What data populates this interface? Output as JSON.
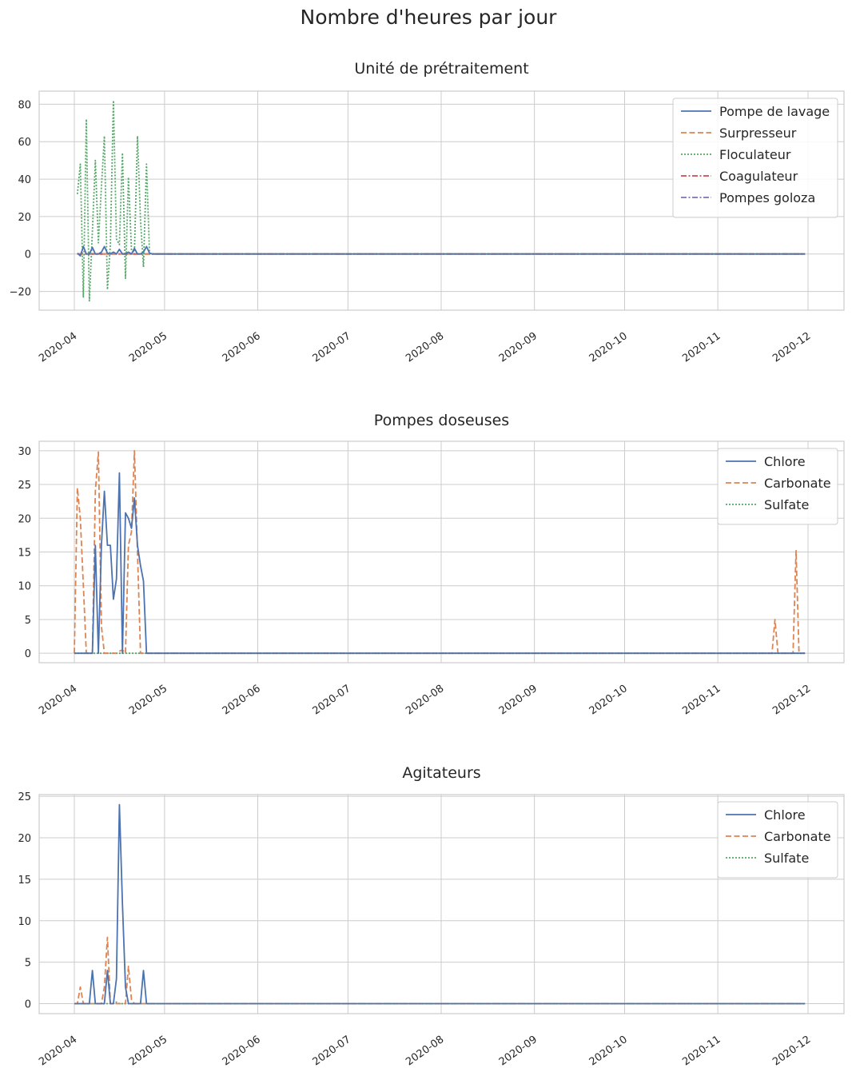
{
  "figure_title": "Nombre d'heures par jour",
  "chart_data": [
    {
      "type": "line",
      "title": "Unité de prétraitement",
      "xlabel": "",
      "ylabel": "",
      "x_tick_labels": [
        "2020-04",
        "2020-05",
        "2020-06",
        "2020-07",
        "2020-08",
        "2020-09",
        "2020-10",
        "2020-11",
        "2020-12"
      ],
      "y_ticks": [
        -20,
        0,
        20,
        40,
        60,
        80
      ],
      "ylim": [
        -30,
        87
      ],
      "grid": true,
      "legend_position": "top-right",
      "x_dates_note": "daily from 2020-04-02",
      "series": [
        {
          "name": "Pompe de lavage",
          "color": "#4c72b0",
          "dash": "solid",
          "points": [
            [
              "2020-04-02",
              0.5
            ],
            [
              "2020-04-03",
              -1
            ],
            [
              "2020-04-04",
              4
            ],
            [
              "2020-04-05",
              0
            ],
            [
              "2020-04-06",
              0
            ],
            [
              "2020-04-07",
              3.5
            ],
            [
              "2020-04-08",
              0
            ],
            [
              "2020-04-09",
              0
            ],
            [
              "2020-04-10",
              1
            ],
            [
              "2020-04-11",
              4
            ],
            [
              "2020-04-12",
              0.5
            ],
            [
              "2020-04-13",
              0
            ],
            [
              "2020-04-14",
              1
            ],
            [
              "2020-04-15",
              0
            ],
            [
              "2020-04-16",
              2.5
            ],
            [
              "2020-04-17",
              0
            ],
            [
              "2020-04-18",
              0
            ],
            [
              "2020-04-19",
              1
            ],
            [
              "2020-04-20",
              0
            ],
            [
              "2020-04-21",
              3
            ],
            [
              "2020-04-22",
              0
            ],
            [
              "2020-04-23",
              0
            ],
            [
              "2020-04-24",
              1
            ],
            [
              "2020-04-25",
              4
            ],
            [
              "2020-04-26",
              0.5
            ],
            [
              "2020-04-27",
              0
            ],
            [
              "2020-11-30",
              0
            ]
          ]
        },
        {
          "name": "Surpresseur",
          "color": "#dd8452",
          "dash": "dashed",
          "points": [
            [
              "2020-04-02",
              0
            ],
            [
              "2020-11-30",
              0
            ]
          ]
        },
        {
          "name": "Floculateur",
          "color": "#55a868",
          "dash": "dotted",
          "points": [
            [
              "2020-04-02",
              32
            ],
            [
              "2020-04-03",
              48
            ],
            [
              "2020-04-04",
              -23
            ],
            [
              "2020-04-05",
              72
            ],
            [
              "2020-04-06",
              -25
            ],
            [
              "2020-04-07",
              12
            ],
            [
              "2020-04-08",
              50
            ],
            [
              "2020-04-09",
              6
            ],
            [
              "2020-04-10",
              36
            ],
            [
              "2020-04-11",
              63
            ],
            [
              "2020-04-12",
              -19
            ],
            [
              "2020-04-13",
              5
            ],
            [
              "2020-04-14",
              82
            ],
            [
              "2020-04-15",
              8
            ],
            [
              "2020-04-16",
              5
            ],
            [
              "2020-04-17",
              54
            ],
            [
              "2020-04-18",
              -13
            ],
            [
              "2020-04-19",
              41
            ],
            [
              "2020-04-20",
              2
            ],
            [
              "2020-04-21",
              1
            ],
            [
              "2020-04-22",
              63
            ],
            [
              "2020-04-23",
              18
            ],
            [
              "2020-04-24",
              -7
            ],
            [
              "2020-04-25",
              48
            ],
            [
              "2020-04-26",
              0
            ],
            [
              "2020-04-27",
              0
            ],
            [
              "2020-11-30",
              0
            ]
          ]
        },
        {
          "name": "Coagulateur",
          "color": "#c44e52",
          "dash": "dashdot",
          "points": [
            [
              "2020-04-02",
              0
            ],
            [
              "2020-11-30",
              0
            ]
          ]
        },
        {
          "name": "Pompes goloza",
          "color": "#8172b3",
          "dash": "dashdot",
          "points": [
            [
              "2020-04-02",
              0
            ],
            [
              "2020-11-30",
              0
            ]
          ]
        }
      ]
    },
    {
      "type": "line",
      "title": "Pompes doseuses",
      "xlabel": "",
      "ylabel": "",
      "x_tick_labels": [
        "2020-04",
        "2020-05",
        "2020-06",
        "2020-07",
        "2020-08",
        "2020-09",
        "2020-10",
        "2020-11",
        "2020-12"
      ],
      "y_ticks": [
        0,
        5,
        10,
        15,
        20,
        25,
        30
      ],
      "ylim": [
        -1.4,
        31.4
      ],
      "grid": true,
      "legend_position": "top-right",
      "series": [
        {
          "name": "Chlore",
          "color": "#4c72b0",
          "dash": "solid",
          "points": [
            [
              "2020-04-01",
              0
            ],
            [
              "2020-04-07",
              0
            ],
            [
              "2020-04-08",
              16
            ],
            [
              "2020-04-09",
              0
            ],
            [
              "2020-04-10",
              16
            ],
            [
              "2020-04-11",
              24
            ],
            [
              "2020-04-12",
              16
            ],
            [
              "2020-04-13",
              16
            ],
            [
              "2020-04-14",
              8
            ],
            [
              "2020-04-15",
              11
            ],
            [
              "2020-04-16",
              26.7
            ],
            [
              "2020-04-17",
              0
            ],
            [
              "2020-04-18",
              20.8
            ],
            [
              "2020-04-19",
              20
            ],
            [
              "2020-04-20",
              18.5
            ],
            [
              "2020-04-21",
              23
            ],
            [
              "2020-04-22",
              16
            ],
            [
              "2020-04-23",
              13
            ],
            [
              "2020-04-24",
              10.7
            ],
            [
              "2020-04-25",
              0
            ],
            [
              "2020-11-30",
              0
            ]
          ]
        },
        {
          "name": "Carbonate",
          "color": "#dd8452",
          "dash": "dashed",
          "points": [
            [
              "2020-04-01",
              0
            ],
            [
              "2020-04-02",
              24.5
            ],
            [
              "2020-04-03",
              20
            ],
            [
              "2020-04-04",
              10
            ],
            [
              "2020-04-05",
              0
            ],
            [
              "2020-04-06",
              0
            ],
            [
              "2020-04-07",
              0
            ],
            [
              "2020-04-08",
              24
            ],
            [
              "2020-04-09",
              29.8
            ],
            [
              "2020-04-10",
              4
            ],
            [
              "2020-04-11",
              0
            ],
            [
              "2020-04-15",
              0
            ],
            [
              "2020-04-16",
              0.3
            ],
            [
              "2020-04-17",
              0.5
            ],
            [
              "2020-04-18",
              0
            ],
            [
              "2020-04-19",
              16
            ],
            [
              "2020-04-20",
              18
            ],
            [
              "2020-04-21",
              30
            ],
            [
              "2020-04-22",
              15
            ],
            [
              "2020-04-23",
              0
            ],
            [
              "2020-11-19",
              0
            ],
            [
              "2020-11-20",
              5
            ],
            [
              "2020-11-21",
              0
            ],
            [
              "2020-11-26",
              0
            ],
            [
              "2020-11-27",
              15.2
            ],
            [
              "2020-11-28",
              0
            ],
            [
              "2020-11-30",
              0
            ]
          ]
        },
        {
          "name": "Sulfate",
          "color": "#55a868",
          "dash": "dotted",
          "points": [
            [
              "2020-04-01",
              0
            ],
            [
              "2020-11-30",
              0
            ]
          ]
        }
      ]
    },
    {
      "type": "line",
      "title": "Agitateurs",
      "xlabel": "",
      "ylabel": "",
      "x_tick_labels": [
        "2020-04",
        "2020-05",
        "2020-06",
        "2020-07",
        "2020-08",
        "2020-09",
        "2020-10",
        "2020-11",
        "2020-12"
      ],
      "y_ticks": [
        0,
        5,
        10,
        15,
        20,
        25
      ],
      "ylim": [
        -1.2,
        25.2
      ],
      "grid": true,
      "legend_position": "top-right",
      "series": [
        {
          "name": "Chlore",
          "color": "#4c72b0",
          "dash": "solid",
          "points": [
            [
              "2020-04-01",
              0
            ],
            [
              "2020-04-06",
              0
            ],
            [
              "2020-04-07",
              4
            ],
            [
              "2020-04-08",
              0
            ],
            [
              "2020-04-11",
              0
            ],
            [
              "2020-04-12",
              4
            ],
            [
              "2020-04-13",
              0
            ],
            [
              "2020-04-14",
              0
            ],
            [
              "2020-04-15",
              3
            ],
            [
              "2020-04-16",
              24
            ],
            [
              "2020-04-17",
              12
            ],
            [
              "2020-04-18",
              2
            ],
            [
              "2020-04-19",
              0
            ],
            [
              "2020-04-23",
              0
            ],
            [
              "2020-04-24",
              4
            ],
            [
              "2020-04-25",
              0
            ],
            [
              "2020-11-30",
              0
            ]
          ]
        },
        {
          "name": "Carbonate",
          "color": "#dd8452",
          "dash": "dashed",
          "points": [
            [
              "2020-04-01",
              0
            ],
            [
              "2020-04-02",
              0
            ],
            [
              "2020-04-03",
              2
            ],
            [
              "2020-04-04",
              0
            ],
            [
              "2020-04-10",
              0
            ],
            [
              "2020-04-11",
              2
            ],
            [
              "2020-04-12",
              8
            ],
            [
              "2020-04-13",
              0
            ],
            [
              "2020-04-18",
              0
            ],
            [
              "2020-04-19",
              4.5
            ],
            [
              "2020-04-20",
              0.5
            ],
            [
              "2020-04-21",
              0
            ],
            [
              "2020-11-30",
              0
            ]
          ]
        },
        {
          "name": "Sulfate",
          "color": "#55a868",
          "dash": "dotted",
          "points": [
            [
              "2020-04-01",
              0
            ],
            [
              "2020-04-14",
              0
            ],
            [
              "2020-04-15",
              0.2
            ],
            [
              "2020-04-16",
              0
            ],
            [
              "2020-11-30",
              0
            ]
          ]
        }
      ]
    }
  ]
}
